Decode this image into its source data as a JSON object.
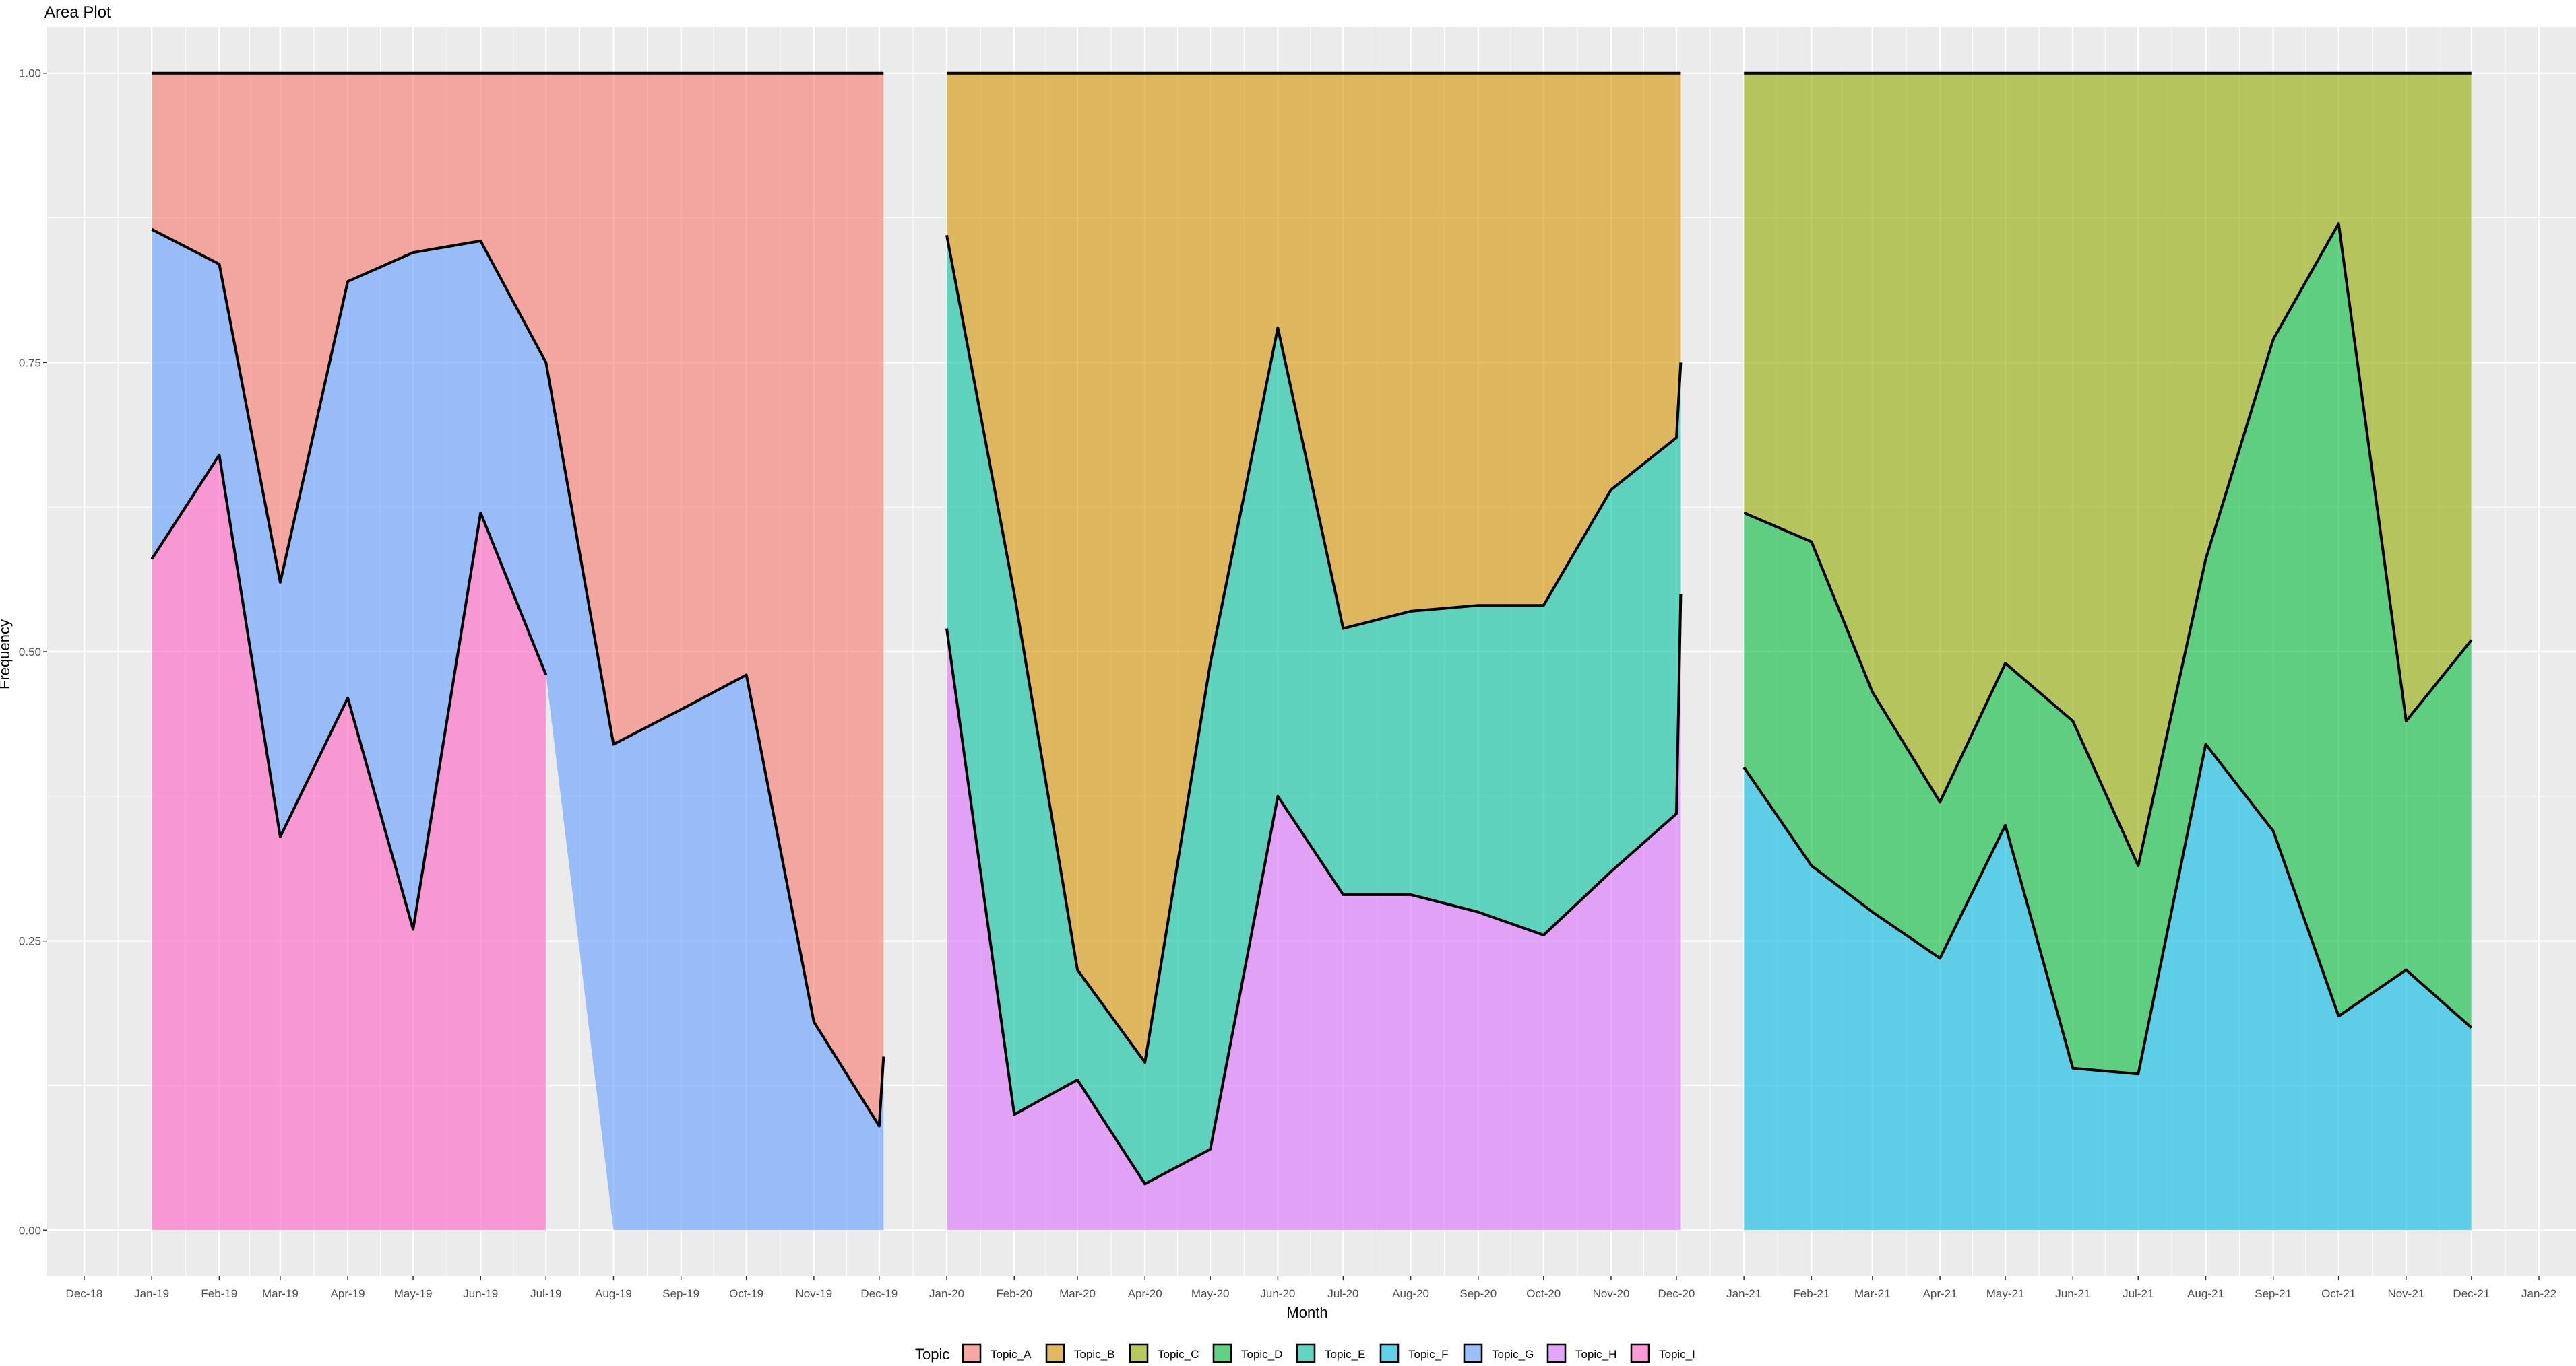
{
  "chart_data": {
    "type": "area",
    "title": "Area Plot",
    "xlabel": "Month",
    "ylabel": "Frequency",
    "legend_title": "Topic",
    "legend_position": "bottom",
    "grid": true,
    "ylim": [
      -0.04,
      1.04
    ],
    "xlim": [
      "2018-11-14",
      "2022-01-18"
    ],
    "y_ticks": [
      "0.00",
      "0.25",
      "0.50",
      "0.75",
      "1.00"
    ],
    "y_tick_values": [
      0,
      0.25,
      0.5,
      0.75,
      1.0
    ],
    "x_tick_labels": [
      "Dec-18",
      "Jan-19",
      "Feb-19",
      "Mar-19",
      "Apr-19",
      "May-19",
      "Jun-19",
      "Jul-19",
      "Aug-19",
      "Sep-19",
      "Oct-19",
      "Nov-19",
      "Dec-19",
      "Jan-20",
      "Feb-20",
      "Mar-20",
      "Apr-20",
      "May-20",
      "Jun-20",
      "Jul-20",
      "Aug-20",
      "Sep-20",
      "Oct-20",
      "Nov-20",
      "Dec-20",
      "Jan-21",
      "Feb-21",
      "Mar-21",
      "Apr-21",
      "May-21",
      "Jun-21",
      "Jul-21",
      "Aug-21",
      "Sep-21",
      "Oct-21",
      "Nov-21",
      "Dec-21",
      "Jan-22"
    ],
    "x_tick_dates": [
      "2018-12-01",
      "2019-01-01",
      "2019-02-01",
      "2019-03-01",
      "2019-04-01",
      "2019-05-01",
      "2019-06-01",
      "2019-07-01",
      "2019-08-01",
      "2019-09-01",
      "2019-10-01",
      "2019-11-01",
      "2019-12-01",
      "2020-01-01",
      "2020-02-01",
      "2020-03-01",
      "2020-04-01",
      "2020-05-01",
      "2020-06-01",
      "2020-07-01",
      "2020-08-01",
      "2020-09-01",
      "2020-10-01",
      "2020-11-01",
      "2020-12-01",
      "2021-01-01",
      "2021-02-01",
      "2021-03-01",
      "2021-04-01",
      "2021-05-01",
      "2021-06-01",
      "2021-07-01",
      "2021-08-01",
      "2021-09-01",
      "2021-10-01",
      "2021-11-01",
      "2021-12-01",
      "2022-01-01"
    ],
    "legend": [
      {
        "name": "Topic_A",
        "color": "#F8766D"
      },
      {
        "name": "Topic_B",
        "color": "#D39200"
      },
      {
        "name": "Topic_C",
        "color": "#93AA00"
      },
      {
        "name": "Topic_D",
        "color": "#00BA38"
      },
      {
        "name": "Topic_E",
        "color": "#00C19F"
      },
      {
        "name": "Topic_F",
        "color": "#00B9E3"
      },
      {
        "name": "Topic_G",
        "color": "#619CFF"
      },
      {
        "name": "Topic_H",
        "color": "#DB72FB"
      },
      {
        "name": "Topic_I",
        "color": "#FF61C3"
      }
    ],
    "panels": [
      {
        "dates": [
          "2019-01-01",
          "2019-02-01",
          "2019-03-01",
          "2019-04-01",
          "2019-05-01",
          "2019-06-01",
          "2019-07-01",
          "2019-08-01",
          "2019-09-01",
          "2019-10-01",
          "2019-11-01",
          "2019-12-01",
          "2019-12-03"
        ],
        "series": [
          {
            "name": "Topic_I",
            "color": "#FF61C3",
            "values": [
              0.58,
              0.67,
              0.34,
              0.46,
              0.26,
              0.62,
              0.48,
              null,
              null,
              null,
              null,
              null,
              null
            ]
          },
          {
            "name": "Topic_G",
            "color": "#619CFF",
            "values": [
              0.285,
              0.165,
              0.22,
              0.36,
              0.585,
              0.235,
              0.27,
              0.42,
              0.45,
              0.48,
              0.18,
              0.09,
              0.15
            ]
          },
          {
            "name": "Topic_A",
            "color": "#F8766D",
            "values": [
              0.135,
              0.165,
              0.44,
              0.18,
              0.155,
              0.145,
              0.25,
              0.58,
              0.55,
              0.52,
              0.82,
              0.91,
              0.85
            ]
          }
        ]
      },
      {
        "dates": [
          "2020-01-01",
          "2020-02-01",
          "2020-03-01",
          "2020-04-01",
          "2020-05-01",
          "2020-06-01",
          "2020-07-01",
          "2020-08-01",
          "2020-09-01",
          "2020-10-01",
          "2020-11-01",
          "2020-12-01",
          "2020-12-03"
        ],
        "series": [
          {
            "name": "Topic_H",
            "color": "#DB72FB",
            "values": [
              0.52,
              0.1,
              0.13,
              0.04,
              0.07,
              0.375,
              0.29,
              0.29,
              0.275,
              0.255,
              0.31,
              0.36,
              0.55
            ]
          },
          {
            "name": "Topic_E",
            "color": "#00C19F",
            "values": [
              0.34,
              0.45,
              0.095,
              0.105,
              0.42,
              0.405,
              0.23,
              0.245,
              0.265,
              0.285,
              0.33,
              0.325,
              0.2
            ]
          },
          {
            "name": "Topic_B",
            "color": "#D39200",
            "values": [
              0.14,
              0.45,
              0.775,
              0.855,
              0.51,
              0.22,
              0.48,
              0.465,
              0.46,
              0.46,
              0.36,
              0.315,
              0.25
            ]
          }
        ]
      },
      {
        "dates": [
          "2021-01-01",
          "2021-02-01",
          "2021-03-01",
          "2021-04-01",
          "2021-05-01",
          "2021-06-01",
          "2021-07-01",
          "2021-08-01",
          "2021-09-01",
          "2021-10-01",
          "2021-11-01",
          "2021-12-01"
        ],
        "series": [
          {
            "name": "Topic_F",
            "color": "#00B9E3",
            "values": [
              0.4,
              0.315,
              0.275,
              0.235,
              0.35,
              0.14,
              0.135,
              0.42,
              0.345,
              0.185,
              0.225,
              0.175
            ]
          },
          {
            "name": "Topic_D",
            "color": "#00BA38",
            "values": [
              0.22,
              0.28,
              0.19,
              0.135,
              0.14,
              0.3,
              0.18,
              0.16,
              0.425,
              0.685,
              0.215,
              0.335
            ]
          },
          {
            "name": "Topic_C",
            "color": "#93AA00",
            "values": [
              0.38,
              0.405,
              0.535,
              0.63,
              0.51,
              0.56,
              0.685,
              0.42,
              0.23,
              0.13,
              0.56,
              0.49
            ]
          }
        ]
      }
    ]
  }
}
